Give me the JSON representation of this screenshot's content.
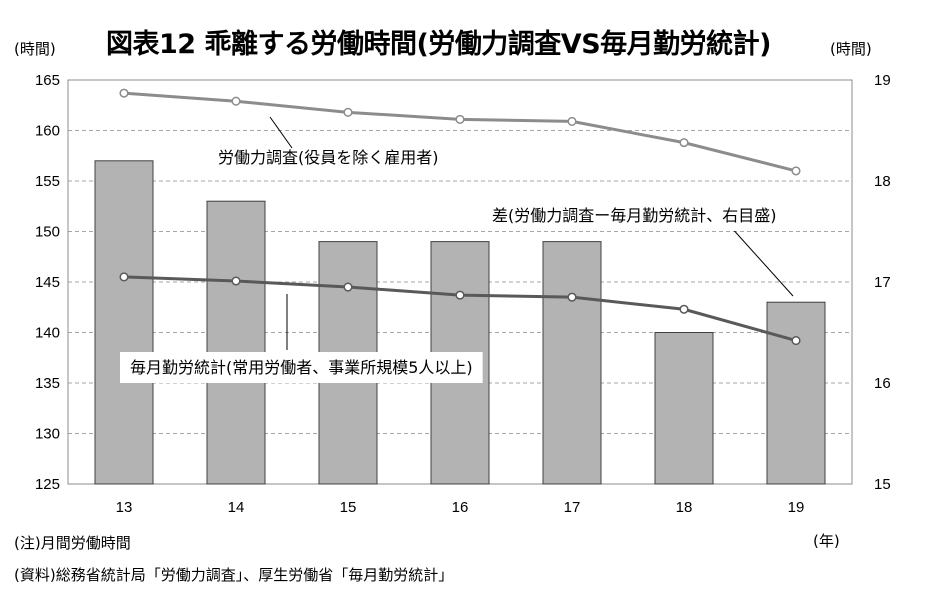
{
  "header": {
    "title": "図表12  乖離する労働時間(労働力調査VS毎月勤労統計)",
    "left_unit": "(時間)",
    "right_unit": "(時間)"
  },
  "x_unit": "(年)",
  "notes": {
    "note1": "(注)月間労働時間",
    "note2": "(資料)総務省統計局「労働力調査」、厚生労働省「毎月勤労統計」"
  },
  "chart_data": {
    "type": "bar",
    "categories": [
      "13",
      "14",
      "15",
      "16",
      "17",
      "18",
      "19"
    ],
    "left_axis": {
      "ylim": [
        125,
        165
      ],
      "ticks": [
        "125",
        "130",
        "135",
        "140",
        "145",
        "150",
        "155",
        "160",
        "165"
      ]
    },
    "right_axis": {
      "ylim": [
        15,
        19
      ],
      "ticks": [
        "15",
        "16",
        "17",
        "18",
        "19"
      ]
    },
    "grid": true,
    "series": [
      {
        "kind": "bar",
        "axis": "right",
        "values": [
          18.2,
          17.8,
          17.4,
          17.4,
          17.4,
          16.5,
          16.8
        ]
      },
      {
        "kind": "line",
        "axis": "left",
        "name": "労働力調査(役員を除く雇用者)",
        "values": [
          163.7,
          162.9,
          161.8,
          161.1,
          160.9,
          158.8,
          156.0
        ]
      },
      {
        "kind": "line",
        "axis": "left",
        "name": "毎月勤労統計(常用労働者、事業所規模5人以上)",
        "values": [
          145.5,
          145.1,
          144.5,
          143.7,
          143.5,
          142.3,
          139.2
        ]
      }
    ],
    "annotations": {
      "labor_force": "労働力調査(役員を除く雇用者)",
      "monthly": "毎月勤労統計(常用労働者、事業所規模5人以上)",
      "difference": "差(労働力調査ー毎月勤労統計、右目盛)"
    },
    "colors": {
      "bar_fill": "#b3b3b3",
      "labor_force_line": "#8c8c8c",
      "monthly_line": "#595959",
      "grid": "#a6a6a6"
    }
  }
}
